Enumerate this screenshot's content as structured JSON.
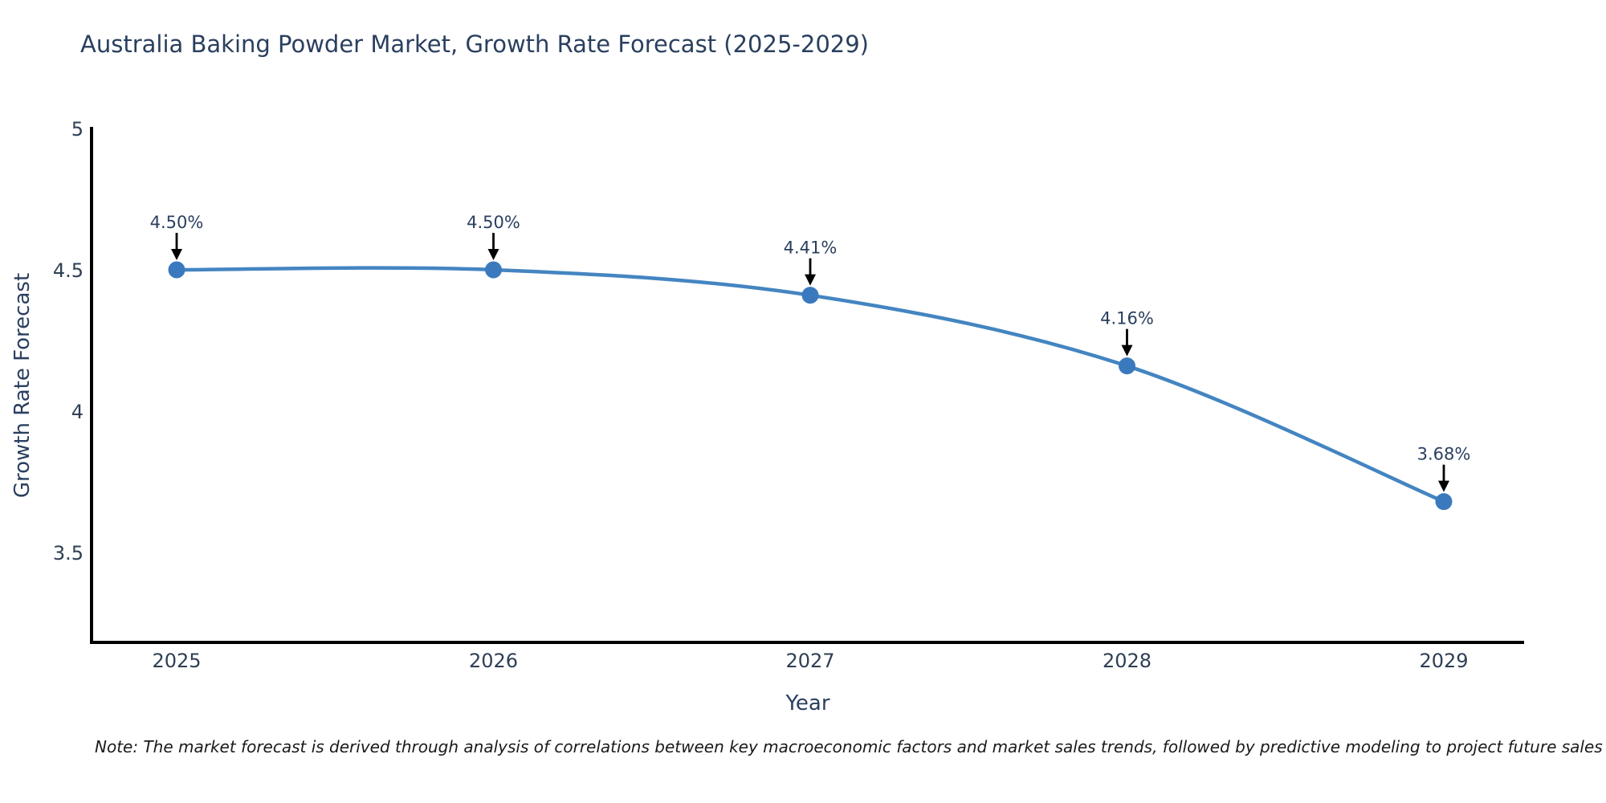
{
  "page": {
    "title": "Australia Baking Powder Market, Growth Rate Forecast (2025-2029)"
  },
  "chart_data": {
    "type": "line",
    "title": "Australia Baking Powder Market, Growth Rate Forecast (2025-2029)",
    "xlabel": "Year",
    "ylabel": "Growth Rate Forecast",
    "x": [
      2025,
      2026,
      2027,
      2028,
      2029
    ],
    "series": [
      {
        "name": "Growth Rate Forecast",
        "values": [
          4.5,
          4.5,
          4.41,
          4.16,
          3.68
        ]
      }
    ],
    "point_labels": [
      "4.50%",
      "4.50%",
      "4.41%",
      "4.16%",
      "3.68%"
    ],
    "yticks": [
      5,
      4.5,
      4,
      3.5
    ],
    "ylim": [
      3.18,
      5
    ],
    "grid": false,
    "legend": false,
    "line_shape": "spline",
    "line_color": "#4485c1",
    "marker_color": "#3a79bd",
    "axis_color": "#000000",
    "arrow_color": "#000000",
    "text_color": "#2a3f5f",
    "background_color": "#ffffff"
  },
  "note": {
    "text": "Note: The market forecast is derived through analysis of correlations between key macroeconomic factors and market sales trends, followed by predictive modeling to project future sales"
  }
}
